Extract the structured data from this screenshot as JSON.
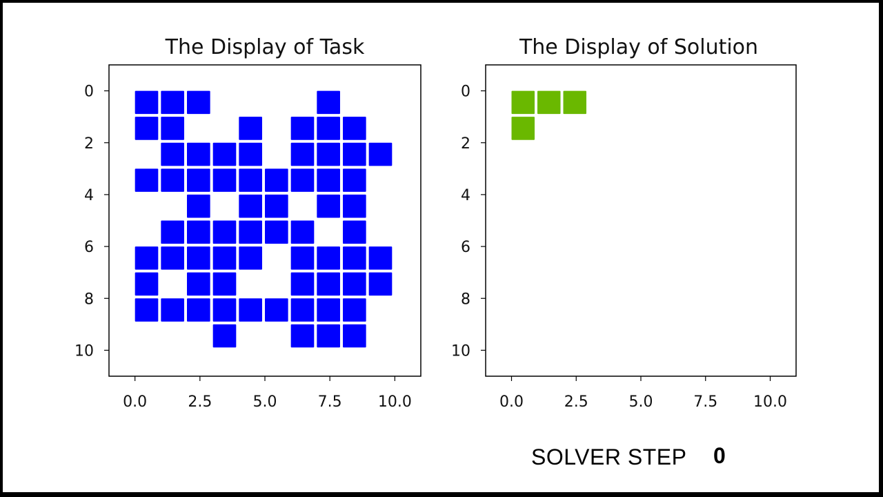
{
  "chart_data": [
    {
      "type": "heatmap",
      "title": "The Display of Task",
      "color": "#0000ff",
      "xlim": [
        -1,
        11
      ],
      "ylim": [
        11,
        -1
      ],
      "xticks": [
        "0.0",
        "2.5",
        "5.0",
        "7.5",
        "10.0"
      ],
      "yticks": [
        "0",
        "2",
        "4",
        "6",
        "8",
        "10"
      ],
      "cells": [
        [
          0,
          0
        ],
        [
          1,
          0
        ],
        [
          2,
          0
        ],
        [
          7,
          0
        ],
        [
          0,
          1
        ],
        [
          1,
          1
        ],
        [
          4,
          1
        ],
        [
          6,
          1
        ],
        [
          7,
          1
        ],
        [
          8,
          1
        ],
        [
          1,
          2
        ],
        [
          2,
          2
        ],
        [
          3,
          2
        ],
        [
          4,
          2
        ],
        [
          6,
          2
        ],
        [
          7,
          2
        ],
        [
          8,
          2
        ],
        [
          9,
          2
        ],
        [
          0,
          3
        ],
        [
          1,
          3
        ],
        [
          2,
          3
        ],
        [
          3,
          3
        ],
        [
          4,
          3
        ],
        [
          5,
          3
        ],
        [
          6,
          3
        ],
        [
          7,
          3
        ],
        [
          8,
          3
        ],
        [
          2,
          4
        ],
        [
          4,
          4
        ],
        [
          5,
          4
        ],
        [
          7,
          4
        ],
        [
          8,
          4
        ],
        [
          1,
          5
        ],
        [
          2,
          5
        ],
        [
          3,
          5
        ],
        [
          4,
          5
        ],
        [
          5,
          5
        ],
        [
          6,
          5
        ],
        [
          8,
          5
        ],
        [
          0,
          6
        ],
        [
          1,
          6
        ],
        [
          2,
          6
        ],
        [
          3,
          6
        ],
        [
          4,
          6
        ],
        [
          6,
          6
        ],
        [
          7,
          6
        ],
        [
          8,
          6
        ],
        [
          9,
          6
        ],
        [
          0,
          7
        ],
        [
          2,
          7
        ],
        [
          3,
          7
        ],
        [
          6,
          7
        ],
        [
          7,
          7
        ],
        [
          8,
          7
        ],
        [
          9,
          7
        ],
        [
          0,
          8
        ],
        [
          1,
          8
        ],
        [
          2,
          8
        ],
        [
          3,
          8
        ],
        [
          4,
          8
        ],
        [
          5,
          8
        ],
        [
          6,
          8
        ],
        [
          7,
          8
        ],
        [
          8,
          8
        ],
        [
          3,
          9
        ],
        [
          6,
          9
        ],
        [
          7,
          9
        ],
        [
          8,
          9
        ]
      ]
    },
    {
      "type": "heatmap",
      "title": "The Display of Solution",
      "color": "#6ab800",
      "xlim": [
        -1,
        11
      ],
      "ylim": [
        11,
        -1
      ],
      "xticks": [
        "0.0",
        "2.5",
        "5.0",
        "7.5",
        "10.0"
      ],
      "yticks": [
        "0",
        "2",
        "4",
        "6",
        "8",
        "10"
      ],
      "cells": [
        [
          0,
          0
        ],
        [
          1,
          0
        ],
        [
          2,
          0
        ],
        [
          0,
          1
        ]
      ]
    }
  ],
  "solver": {
    "label": "SOLVER STEP",
    "value": "0"
  }
}
